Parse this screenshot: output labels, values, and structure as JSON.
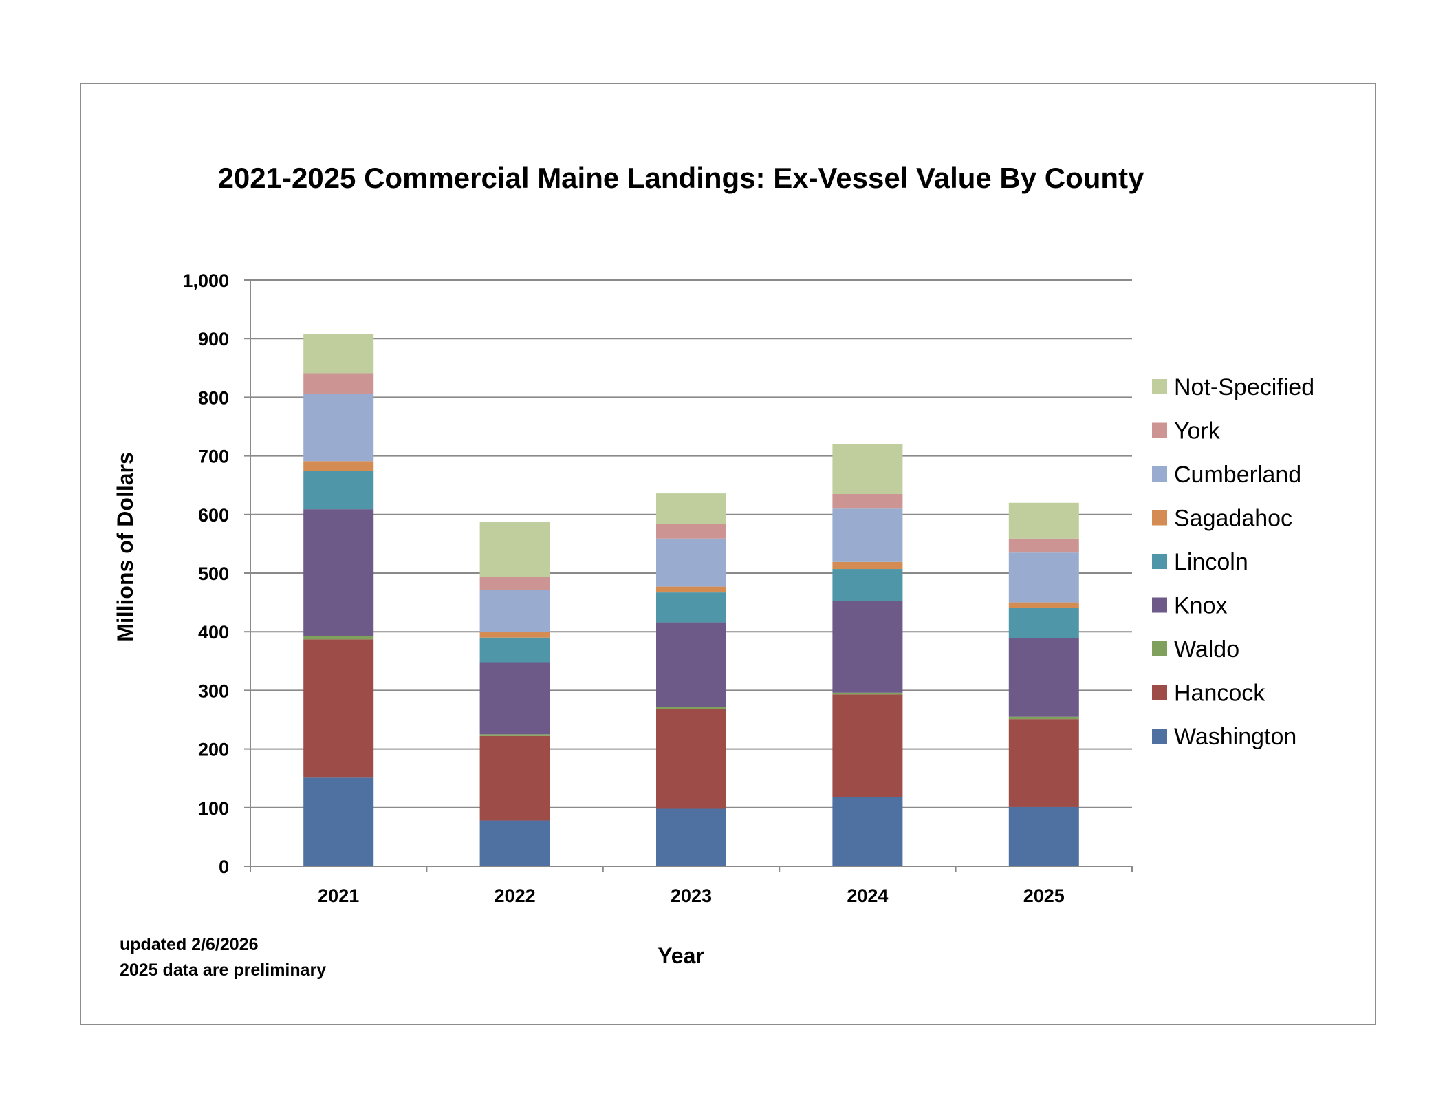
{
  "chart_data": {
    "type": "bar",
    "stacked": true,
    "title": "2021-2025 Commercial Maine Landings: Ex-Vessel Value By County",
    "xlabel": "Year",
    "ylabel": "Millions of Dollars",
    "ylim": [
      0,
      1000
    ],
    "yticks": [
      0,
      100,
      200,
      300,
      400,
      500,
      600,
      700,
      800,
      900,
      1000
    ],
    "ytick_labels": [
      "0",
      "100",
      "200",
      "300",
      "400",
      "500",
      "600",
      "700",
      "800",
      "900",
      "1,000"
    ],
    "grid": true,
    "legend_position": "right",
    "categories": [
      "2021",
      "2022",
      "2023",
      "2024",
      "2025"
    ],
    "series": [
      {
        "name": "Washington",
        "color": "#4F71A2",
        "values": [
          151,
          78,
          98,
          118,
          101
        ]
      },
      {
        "name": "Hancock",
        "color": "#9D4C48",
        "values": [
          236,
          144,
          170,
          175,
          150
        ]
      },
      {
        "name": "Waldo",
        "color": "#7FA15B",
        "values": [
          5,
          3,
          4,
          3,
          4
        ]
      },
      {
        "name": "Knox",
        "color": "#6D5A89",
        "values": [
          217,
          123,
          144,
          156,
          134
        ]
      },
      {
        "name": "Lincoln",
        "color": "#4F97A8",
        "values": [
          65,
          42,
          51,
          55,
          52
        ]
      },
      {
        "name": "Sagadahoc",
        "color": "#D58C52",
        "values": [
          17,
          10,
          10,
          12,
          9
        ]
      },
      {
        "name": "Cumberland",
        "color": "#99ACCF",
        "values": [
          115,
          71,
          82,
          91,
          85
        ]
      },
      {
        "name": "York",
        "color": "#CC9594",
        "values": [
          35,
          22,
          25,
          25,
          24
        ]
      },
      {
        "name": "Not-Specified",
        "color": "#BFCE9C",
        "values": [
          67,
          94,
          52,
          85,
          61
        ]
      }
    ],
    "notes": [
      "updated 2/6/2026",
      "2025 data are preliminary"
    ]
  }
}
